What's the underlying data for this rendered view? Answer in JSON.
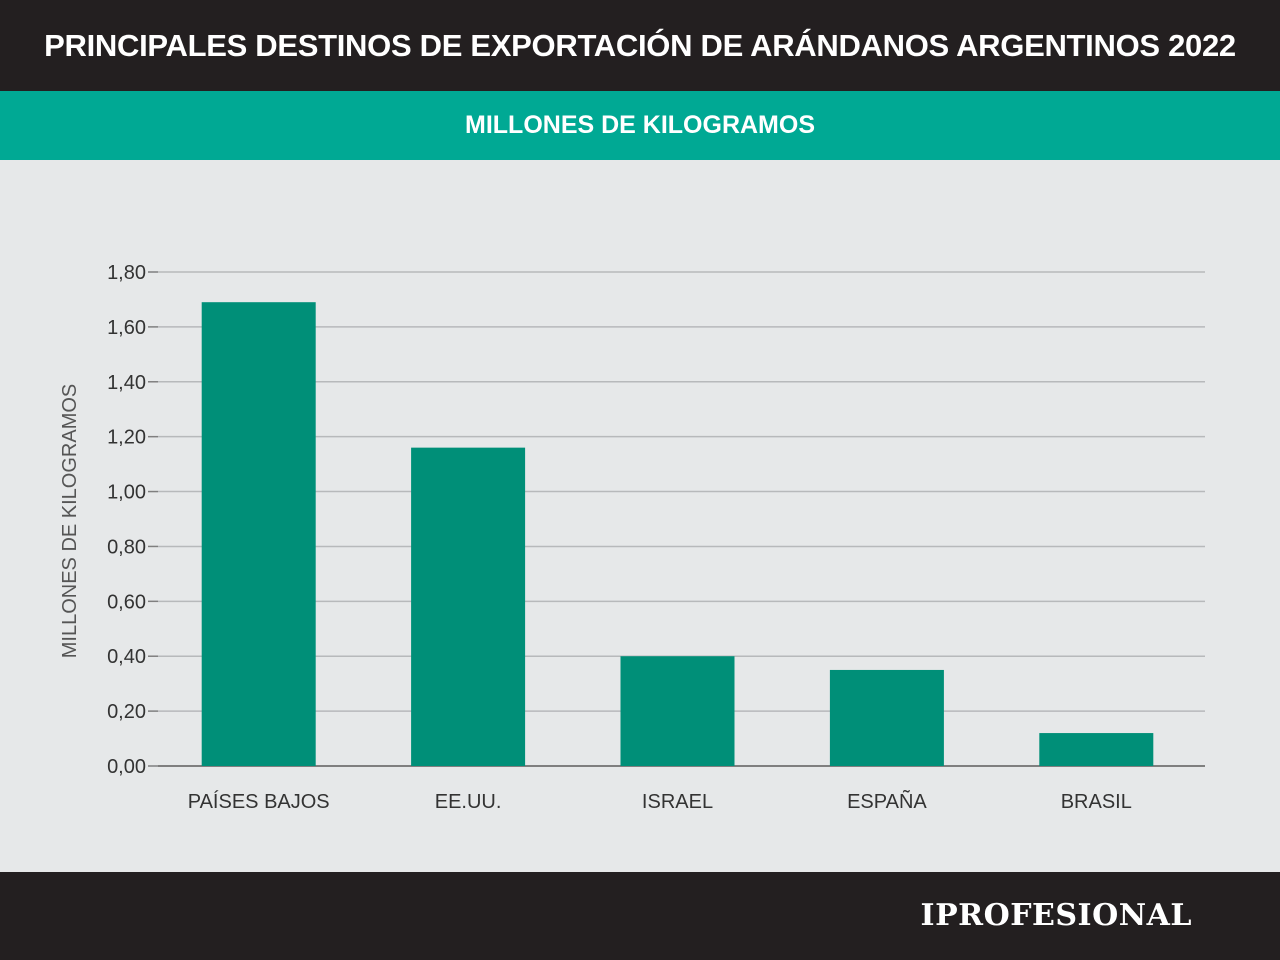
{
  "header": {
    "title": "PRINCIPALES DESTINOS DE EXPORTACIÓN DE ARÁNDANOS ARGENTINOS 2022",
    "subtitle": "MILLONES DE KILOGRAMOS"
  },
  "footer": {
    "brand": "IPROFESIONAL"
  },
  "colors": {
    "bar": "#008f78",
    "accent": "#00a994",
    "dark": "#231f20",
    "background": "#e6e8e9"
  },
  "chart_data": {
    "type": "bar",
    "title": "PRINCIPALES DESTINOS DE EXPORTACIÓN DE ARÁNDANOS ARGENTINOS 2022",
    "subtitle": "MILLONES DE KILOGRAMOS",
    "xlabel": "",
    "ylabel": "MILLONES DE KILOGRAMOS",
    "categories": [
      "PAÍSES BAJOS",
      "EE.UU.",
      "ISRAEL",
      "ESPAÑA",
      "BRASIL"
    ],
    "values": [
      1.69,
      1.16,
      0.4,
      0.35,
      0.12
    ],
    "ylim": [
      0,
      1.8
    ],
    "yticks": [
      "0,00",
      "0,20",
      "0,40",
      "0,60",
      "0,80",
      "1,00",
      "1,20",
      "1,40",
      "1,60",
      "1,80"
    ],
    "grid": true,
    "legend": "none"
  }
}
